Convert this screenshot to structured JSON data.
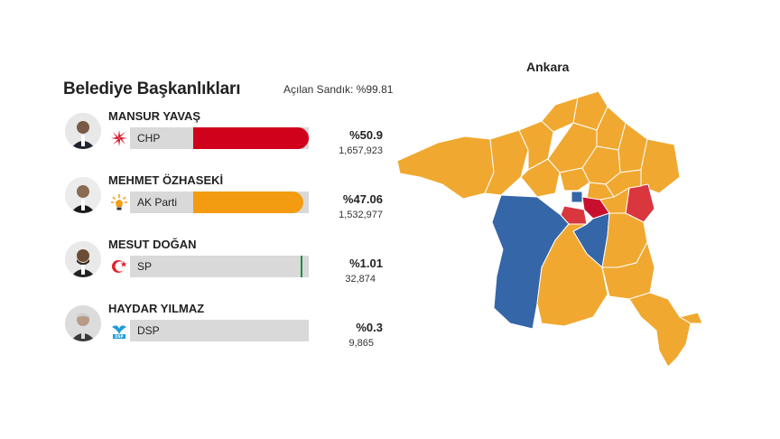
{
  "header": {
    "title": "Belediye Başkanlıkları",
    "opened_ballots": "Açılan Sandık: %99.81"
  },
  "candidates": [
    {
      "name": "MANSUR YAVAŞ",
      "party": "CHP",
      "percent": "%50.9",
      "votes": "1,657,923",
      "share": 50.9,
      "color": "#d0021b"
    },
    {
      "name": "MEHMET ÖZHASEKİ",
      "party": "AK Parti",
      "percent": "%47.06",
      "votes": "1,532,977",
      "share": 47.06,
      "color": "#f39c12"
    },
    {
      "name": "MESUT DOĞAN",
      "party": "SP",
      "percent": "%1.01",
      "votes": "32,874",
      "share": 1.01,
      "color": "#1e8e3e"
    },
    {
      "name": "HAYDAR YILMAZ",
      "party": "DSP",
      "percent": "%0.3",
      "votes": "9,865",
      "share": 0.3,
      "color": "#1d9bd7"
    }
  ],
  "map": {
    "title": "Ankara",
    "colors": {
      "chp": "#f0a830",
      "akp": "#3566a8",
      "mhp": "#d9363e",
      "other": "#c8102e"
    }
  }
}
